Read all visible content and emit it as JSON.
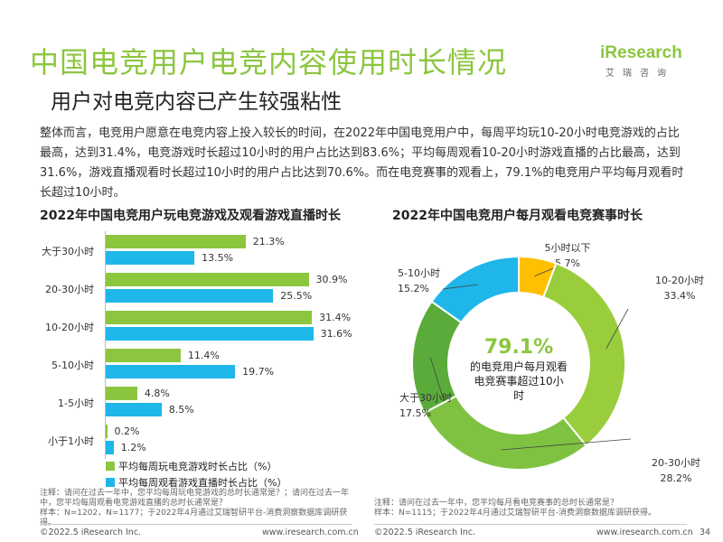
{
  "title": "中国电竞用户电竞内容使用时长情况",
  "subtitle": "用户对电竞内容已产生较强粘性",
  "logo": {
    "word": "iResearch",
    "sub": "艾瑞咨询"
  },
  "intro": "整体而言，电竞用户愿意在电竞内容上投入较长的时间，在2022年中国电竞用户中，每周平均玩10-20小时电竞游戏的占比最高，达到31.4%，电竞游戏时长超过10小时的用户占比达到83.6%；平均每周观看10-20小时游戏直播的占比最高，达到31.6%，游戏直播观看时长超过10小时的用户占比达到70.6%。而在电竞赛事的观看上，79.1%的电竞用户平均每月观看时长超过10小时。",
  "chart_data": [
    {
      "type": "bar",
      "orientation": "horizontal",
      "title": "2022年中国电竞用户玩电竞游戏及观看游戏直播时长",
      "categories": [
        "大于30小时",
        "20-30小时",
        "10-20小时",
        "5-10小时",
        "1-5小时",
        "小于1小时"
      ],
      "series": [
        {
          "name": "平均每周玩电竞游戏时长占比（%）",
          "values": [
            21.3,
            30.9,
            31.4,
            11.4,
            4.8,
            0.2
          ],
          "labels": [
            "21.3%",
            "30.9%",
            "31.4%",
            "11.4%",
            "4.8%",
            "0.2%"
          ],
          "color": "#8cc63f"
        },
        {
          "name": "平均每周观看游戏直播时长占比（%）",
          "values": [
            13.5,
            25.5,
            31.6,
            19.7,
            8.5,
            1.2
          ],
          "labels": [
            "13.5%",
            "25.5%",
            "31.6%",
            "19.7%",
            "8.5%",
            "1.2%"
          ],
          "color": "#1fb6e9"
        }
      ],
      "xlim": [
        0,
        35
      ],
      "legend": "bottom"
    },
    {
      "type": "pie",
      "variant": "donut",
      "title": "2022年中国电竞用户每月观看电竞赛事时长",
      "slices": [
        {
          "label": "5小时以下",
          "value": 5.7,
          "pct": "5.7%",
          "color": "#ffc000"
        },
        {
          "label": "10-20小时",
          "value": 33.4,
          "pct": "33.4%",
          "color": "#9acd3c"
        },
        {
          "label": "20-30小时",
          "value": 28.2,
          "pct": "28.2%",
          "color": "#7fc241"
        },
        {
          "label": "大于30小时",
          "value": 17.5,
          "pct": "17.5%",
          "color": "#5bab3a"
        },
        {
          "label": "5-10小时",
          "value": 15.2,
          "pct": "15.2%",
          "color": "#1fb6e9"
        }
      ],
      "center_value": "79.1%",
      "center_text": [
        "的电竞用户每月观看",
        "电竞赛事超过10小时"
      ]
    }
  ],
  "notes": {
    "left": [
      "注释：请问在过去一年中，您平均每周玩电竞游戏的总时长通常是？；请问在过去一年",
      "中，您平均每周观看电竞游戏直播的总时长通常是？",
      "样本：N=1202，N=1177；于2022年4月通过艾瑞智研平台-消费洞察数据库调研获得。"
    ],
    "right": [
      "注释：请问在过去一年中，您平均每月看电竞赛事的总时长通常是？",
      "样本：N=1115；于2022年4月通过艾瑞智研平台-消费洞察数据库调研获得。"
    ]
  },
  "footer": {
    "copyright_left": "©2022.5 iResearch Inc.",
    "url_left": "www.iresearch.com.cn",
    "copyright_right": "©2022.5 iResearch Inc.",
    "url_right": "www.iresearch.com.cn",
    "page": "34"
  }
}
